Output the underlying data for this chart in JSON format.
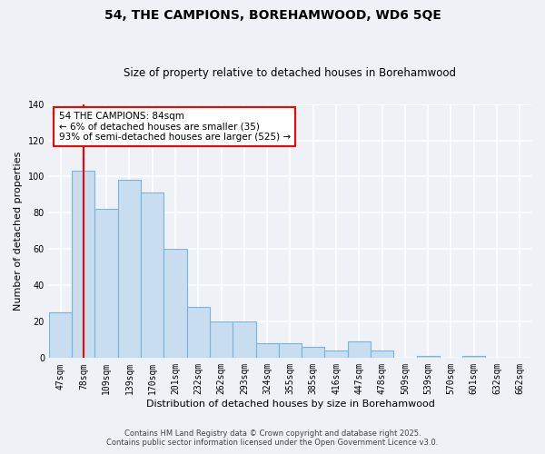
{
  "title": "54, THE CAMPIONS, BOREHAMWOOD, WD6 5QE",
  "subtitle": "Size of property relative to detached houses in Borehamwood",
  "xlabel": "Distribution of detached houses by size in Borehamwood",
  "ylabel": "Number of detached properties",
  "categories": [
    "47sqm",
    "78sqm",
    "109sqm",
    "139sqm",
    "170sqm",
    "201sqm",
    "232sqm",
    "262sqm",
    "293sqm",
    "324sqm",
    "355sqm",
    "385sqm",
    "416sqm",
    "447sqm",
    "478sqm",
    "509sqm",
    "539sqm",
    "570sqm",
    "601sqm",
    "632sqm",
    "662sqm"
  ],
  "values": [
    25,
    103,
    82,
    98,
    91,
    60,
    28,
    20,
    20,
    8,
    8,
    6,
    4,
    9,
    4,
    0,
    1,
    0,
    1,
    0,
    0
  ],
  "bar_color": "#c9ddf0",
  "bar_edge_color": "#7ab4d8",
  "background_color": "#eef2f7",
  "grid_color": "#ffffff",
  "red_line_x": 1.0,
  "annotation_title": "54 THE CAMPIONS: 84sqm",
  "annotation_line1": "← 6% of detached houses are smaller (35)",
  "annotation_line2": "93% of semi-detached houses are larger (525) →",
  "ylim": [
    0,
    140
  ],
  "yticks": [
    0,
    20,
    40,
    60,
    80,
    100,
    120,
    140
  ],
  "footer1": "Contains HM Land Registry data © Crown copyright and database right 2025.",
  "footer2": "Contains public sector information licensed under the Open Government Licence v3.0.",
  "title_fontsize": 10,
  "subtitle_fontsize": 8.5,
  "axis_label_fontsize": 8,
  "tick_fontsize": 7,
  "annotation_fontsize": 7.5,
  "footer_fontsize": 6
}
